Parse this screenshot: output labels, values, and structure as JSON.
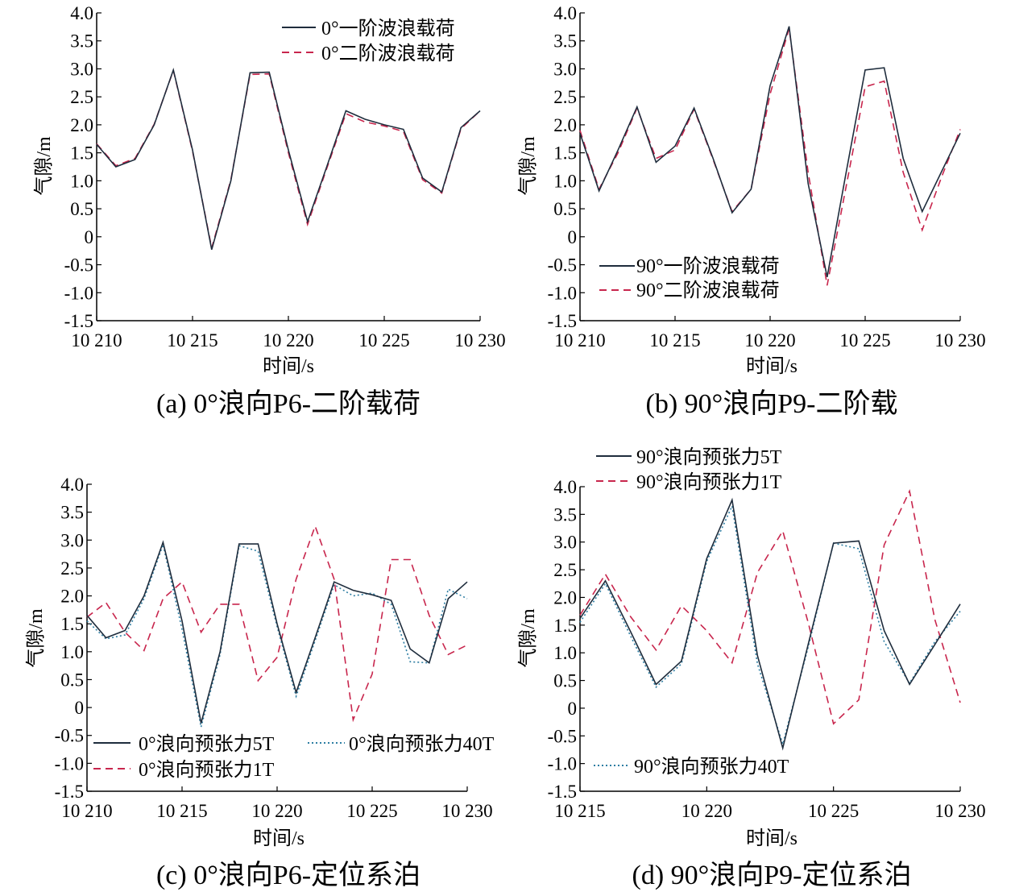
{
  "chart_data": [
    {
      "type": "line",
      "caption": "(a) 0°浪向P6-二阶载荷",
      "xlabel": "时间/s",
      "ylabel": "气隙/m",
      "xlim": [
        10210,
        10230
      ],
      "ylim": [
        -1.5,
        4.0
      ],
      "xticks": [
        10210,
        10215,
        10220,
        10225,
        10230
      ],
      "xtick_labels": [
        "10 210",
        "10 215",
        "10 220",
        "10 225",
        "10 230"
      ],
      "yticks": [
        -1.5,
        -1.0,
        -0.5,
        0,
        0.5,
        1.0,
        1.5,
        2.0,
        2.5,
        3.0,
        3.5,
        4.0
      ],
      "ytick_labels": [
        "-1.5",
        "-1.0",
        "-0.5",
        "0",
        "0.5",
        "1.0",
        "1.5",
        "2.0",
        "2.5",
        "3.0",
        "3.5",
        "4.0"
      ],
      "legend_position": "top-right",
      "x": [
        10210,
        10211,
        10212,
        10213,
        10214,
        10215,
        10216,
        10217,
        10218,
        10219,
        10220,
        10221,
        10222,
        10223,
        10224,
        10225,
        10226,
        10227,
        10228,
        10229,
        10230
      ],
      "series": [
        {
          "name": "0°一阶波浪载荷",
          "style": "solid",
          "color": "#1f2d3d",
          "values": [
            1.65,
            1.25,
            1.38,
            2.0,
            2.98,
            1.55,
            -0.23,
            1.0,
            2.93,
            2.94,
            1.55,
            0.27,
            1.25,
            2.25,
            2.1,
            2.0,
            1.92,
            1.05,
            0.8,
            1.95,
            2.25
          ]
        },
        {
          "name": "0°二阶波浪载荷",
          "style": "dashed",
          "color": "#c8264d",
          "values": [
            1.66,
            1.27,
            1.4,
            2.01,
            2.97,
            1.53,
            -0.2,
            1.02,
            2.9,
            2.91,
            1.5,
            0.22,
            1.22,
            2.2,
            2.05,
            1.98,
            1.88,
            1.02,
            0.78,
            1.93,
            2.25
          ]
        }
      ]
    },
    {
      "type": "line",
      "caption": "(b) 90°浪向P9-二阶载",
      "xlabel": "时间/s",
      "ylabel": "气隙/m",
      "xlim": [
        10210,
        10230
      ],
      "ylim": [
        -1.5,
        4.0
      ],
      "xticks": [
        10210,
        10215,
        10220,
        10225,
        10230
      ],
      "xtick_labels": [
        "10 210",
        "10 215",
        "10 220",
        "10 225",
        "10 230"
      ],
      "yticks": [
        -1.5,
        -1.0,
        -0.5,
        0,
        0.5,
        1.0,
        1.5,
        2.0,
        2.5,
        3.0,
        3.5,
        4.0
      ],
      "ytick_labels": [
        "-1.5",
        "-1.0",
        "-0.5",
        "0",
        "0.5",
        "1.0",
        "1.5",
        "2.0",
        "2.5",
        "3.0",
        "3.5",
        "4.0"
      ],
      "legend_position": "bottom-left",
      "x": [
        10210,
        10211,
        10212,
        10213,
        10214,
        10215,
        10216,
        10217,
        10218,
        10219,
        10220,
        10221,
        10222,
        10223,
        10224,
        10225,
        10226,
        10227,
        10228,
        10229,
        10230
      ],
      "series": [
        {
          "name": "90°一阶波浪载荷",
          "style": "solid",
          "color": "#1f2d3d",
          "values": [
            1.85,
            0.82,
            1.55,
            2.32,
            1.33,
            1.62,
            2.3,
            1.4,
            0.43,
            0.85,
            2.7,
            3.76,
            0.95,
            -0.72,
            1.15,
            2.98,
            3.02,
            1.4,
            0.45,
            1.15,
            1.85
          ]
        },
        {
          "name": "90°二阶波浪载荷",
          "style": "dashed",
          "color": "#c8264d",
          "values": [
            1.9,
            0.85,
            1.5,
            2.3,
            1.4,
            1.55,
            2.28,
            1.38,
            0.45,
            0.85,
            2.55,
            3.72,
            1.15,
            -0.87,
            0.9,
            2.68,
            2.78,
            1.15,
            0.12,
            1.05,
            1.92
          ]
        }
      ]
    },
    {
      "type": "line",
      "caption": "(c) 0°浪向P6-定位系泊",
      "xlabel": "时间/s",
      "ylabel": "气隙/m",
      "xlim": [
        10210,
        10230
      ],
      "ylim": [
        -1.5,
        4.0
      ],
      "xticks": [
        10210,
        10215,
        10220,
        10225,
        10230
      ],
      "xtick_labels": [
        "10 210",
        "10 215",
        "10 220",
        "10 225",
        "10 230"
      ],
      "yticks": [
        -1.5,
        -1.0,
        -0.5,
        0,
        0.5,
        1.0,
        1.5,
        2.0,
        2.5,
        3.0,
        3.5,
        4.0
      ],
      "ytick_labels": [
        "-1.5",
        "-1.0",
        "-0.5",
        "0",
        "0.5",
        "1.0",
        "1.5",
        "2.0",
        "2.5",
        "3.0",
        "3.5",
        "4.0"
      ],
      "legend_position": "bottom",
      "x": [
        10210,
        10211,
        10212,
        10213,
        10214,
        10215,
        10216,
        10217,
        10218,
        10219,
        10220,
        10221,
        10222,
        10223,
        10224,
        10225,
        10226,
        10227,
        10228,
        10229,
        10230
      ],
      "series": [
        {
          "name": "0°浪向预张力5T",
          "style": "solid",
          "color": "#1f2d3d",
          "values": [
            1.65,
            1.25,
            1.38,
            2.0,
            2.96,
            1.55,
            -0.28,
            1.0,
            2.93,
            2.93,
            1.5,
            0.27,
            1.25,
            2.25,
            2.1,
            2.02,
            1.92,
            1.05,
            0.8,
            1.95,
            2.25
          ]
        },
        {
          "name": "0°浪向预张力40T",
          "style": "dotted",
          "color": "#2e7ea3",
          "values": [
            1.55,
            1.23,
            1.3,
            1.95,
            2.92,
            1.4,
            -0.35,
            0.95,
            2.9,
            2.8,
            1.45,
            0.2,
            1.2,
            2.2,
            2.0,
            2.05,
            1.85,
            0.82,
            0.8,
            2.12,
            1.95
          ]
        },
        {
          "name": "0°浪向预张力1T",
          "style": "dashed",
          "color": "#c8264d",
          "values": [
            1.62,
            1.88,
            1.35,
            1.02,
            1.95,
            2.25,
            1.35,
            1.85,
            1.85,
            0.48,
            0.9,
            2.3,
            3.25,
            2.3,
            -0.22,
            0.6,
            2.65,
            2.65,
            1.65,
            0.95,
            1.12
          ]
        }
      ]
    },
    {
      "type": "line",
      "caption": "(d) 90°浪向P9-定位系泊",
      "xlabel": "时间/s",
      "ylabel": "气隙/m",
      "xlim": [
        10215,
        10230
      ],
      "ylim": [
        -1.5,
        4.0
      ],
      "xticks": [
        10215,
        10220,
        10225,
        10230
      ],
      "xtick_labels": [
        "10 215",
        "10 220",
        "10 225",
        "10 230"
      ],
      "yticks": [
        -1.5,
        -1.0,
        -0.5,
        0,
        0.5,
        1.0,
        1.5,
        2.0,
        2.5,
        3.0,
        3.5,
        4.0
      ],
      "ytick_labels": [
        "-1.5",
        "-1.0",
        "-0.5",
        "0",
        "0.5",
        "1.0",
        "1.5",
        "2.0",
        "2.5",
        "3.0",
        "3.5",
        "4.0"
      ],
      "legend_position": "top-left and bottom-left",
      "x": [
        10215,
        10216,
        10217,
        10218,
        10219,
        10220,
        10221,
        10222,
        10223,
        10224,
        10225,
        10226,
        10227,
        10228,
        10229,
        10230
      ],
      "series": [
        {
          "name": "90°浪向预张力5T",
          "style": "solid",
          "color": "#1f2d3d",
          "values": [
            1.62,
            2.3,
            1.38,
            0.43,
            0.85,
            2.7,
            3.76,
            0.95,
            -0.72,
            1.15,
            2.98,
            3.02,
            1.4,
            0.43,
            1.15,
            1.88
          ]
        },
        {
          "name": "90°浪向预张力1T",
          "style": "dashed",
          "color": "#c8264d",
          "values": [
            1.68,
            2.42,
            1.65,
            1.05,
            1.85,
            1.4,
            0.82,
            2.45,
            3.2,
            1.55,
            -0.28,
            0.15,
            2.95,
            3.92,
            1.6,
            0.1
          ]
        },
        {
          "name": "90°浪向预张力40T",
          "style": "dotted",
          "color": "#2e7ea3",
          "values": [
            1.55,
            2.25,
            1.3,
            0.38,
            0.8,
            2.65,
            3.65,
            0.8,
            -0.65,
            1.1,
            2.98,
            2.88,
            1.2,
            0.45,
            1.2,
            1.75
          ]
        }
      ]
    }
  ]
}
